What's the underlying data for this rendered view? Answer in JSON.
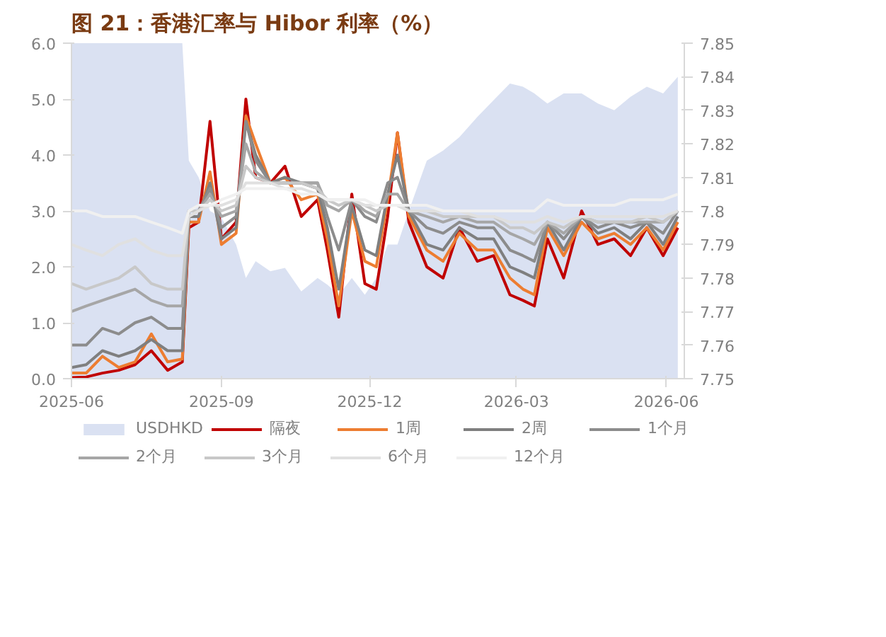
{
  "chart_data": {
    "type": "line",
    "title": "图 21：香港汇率与 Hibor 利率（%）",
    "x": [
      "2025-06-01",
      "2025-06-10",
      "2025-06-20",
      "2025-06-30",
      "2025-07-10",
      "2025-07-20",
      "2025-07-30",
      "2025-08-08",
      "2025-08-12",
      "2025-08-18",
      "2025-08-25",
      "2025-09-01",
      "2025-09-10",
      "2025-09-16",
      "2025-09-22",
      "2025-10-01",
      "2025-10-10",
      "2025-10-20",
      "2025-10-30",
      "2025-11-05",
      "2025-11-12",
      "2025-11-20",
      "2025-11-28",
      "2025-12-05",
      "2025-12-12",
      "2025-12-18",
      "2025-12-25",
      "2026-01-05",
      "2026-01-15",
      "2026-01-25",
      "2026-02-05",
      "2026-02-15",
      "2026-02-25",
      "2026-03-05",
      "2026-03-12",
      "2026-03-20",
      "2026-03-30",
      "2026-04-10",
      "2026-04-20",
      "2026-04-30",
      "2026-05-10",
      "2026-05-20",
      "2026-05-30",
      "2026-06-08"
    ],
    "series": [
      {
        "name": "USDHKD",
        "type": "area",
        "axis": "y2",
        "color": "#dae1f2",
        "values": [
          7.85,
          7.85,
          7.85,
          7.85,
          7.85,
          7.85,
          7.85,
          7.85,
          7.815,
          7.81,
          7.8,
          7.798,
          7.79,
          7.78,
          7.785,
          7.782,
          7.783,
          7.776,
          7.78,
          7.778,
          7.775,
          7.78,
          7.775,
          7.78,
          7.79,
          7.79,
          7.8,
          7.815,
          7.818,
          7.822,
          7.828,
          7.833,
          7.838,
          7.837,
          7.835,
          7.832,
          7.835,
          7.835,
          7.832,
          7.83,
          7.834,
          7.837,
          7.835,
          7.84
        ]
      },
      {
        "name": "隔夜",
        "color": "#c00000",
        "values": [
          0.02,
          0.03,
          0.1,
          0.15,
          0.25,
          0.5,
          0.15,
          0.3,
          2.7,
          2.8,
          4.6,
          2.5,
          2.8,
          5.0,
          3.6,
          3.5,
          3.8,
          2.9,
          3.2,
          2.3,
          1.1,
          3.3,
          1.7,
          1.6,
          2.9,
          4.4,
          2.8,
          2.0,
          1.8,
          2.7,
          2.1,
          2.2,
          1.5,
          1.4,
          1.3,
          2.5,
          1.8,
          3.0,
          2.4,
          2.5,
          2.2,
          2.7,
          2.2,
          2.7
        ]
      },
      {
        "name": "1周",
        "color": "#ed7d31",
        "values": [
          0.1,
          0.1,
          0.4,
          0.2,
          0.3,
          0.8,
          0.3,
          0.35,
          2.8,
          2.8,
          3.7,
          2.4,
          2.6,
          4.7,
          4.2,
          3.5,
          3.6,
          3.2,
          3.3,
          2.5,
          1.3,
          3.0,
          2.1,
          2.0,
          3.2,
          4.4,
          2.9,
          2.3,
          2.1,
          2.6,
          2.3,
          2.3,
          1.8,
          1.6,
          1.5,
          2.7,
          2.2,
          2.8,
          2.5,
          2.6,
          2.4,
          2.7,
          2.3,
          2.8
        ]
      },
      {
        "name": "2周",
        "color": "#7f7f7f",
        "values": [
          0.2,
          0.25,
          0.5,
          0.4,
          0.5,
          0.7,
          0.5,
          0.5,
          2.9,
          2.9,
          3.5,
          2.5,
          2.7,
          4.6,
          4.0,
          3.5,
          3.6,
          3.5,
          3.4,
          2.7,
          1.6,
          3.1,
          2.3,
          2.2,
          3.3,
          4.0,
          3.0,
          2.4,
          2.3,
          2.7,
          2.5,
          2.5,
          2.0,
          1.9,
          1.8,
          2.8,
          2.3,
          2.9,
          2.6,
          2.7,
          2.5,
          2.8,
          2.4,
          2.9
        ]
      },
      {
        "name": "1个月",
        "color": "#8c8c8c",
        "values": [
          0.6,
          0.6,
          0.9,
          0.8,
          1.0,
          1.1,
          0.9,
          0.9,
          3.0,
          3.0,
          3.4,
          2.7,
          2.9,
          4.6,
          3.9,
          3.5,
          3.5,
          3.5,
          3.5,
          2.9,
          2.3,
          3.2,
          2.9,
          2.8,
          3.5,
          3.6,
          3.0,
          2.7,
          2.6,
          2.8,
          2.7,
          2.7,
          2.3,
          2.2,
          2.1,
          2.8,
          2.5,
          2.9,
          2.7,
          2.8,
          2.7,
          2.8,
          2.6,
          3.0
        ]
      },
      {
        "name": "2个月",
        "color": "#a6a6a6",
        "values": [
          1.2,
          1.3,
          1.4,
          1.5,
          1.6,
          1.4,
          1.3,
          1.3,
          3.0,
          3.0,
          3.3,
          2.9,
          3.0,
          4.2,
          3.7,
          3.5,
          3.5,
          3.5,
          3.5,
          3.1,
          3.0,
          3.2,
          3.0,
          2.9,
          3.3,
          3.3,
          3.0,
          2.9,
          2.8,
          2.9,
          2.8,
          2.8,
          2.6,
          2.5,
          2.4,
          2.8,
          2.6,
          2.9,
          2.8,
          2.8,
          2.8,
          2.8,
          2.8,
          3.0
        ]
      },
      {
        "name": "3个月",
        "color": "#c8c8c8",
        "values": [
          1.7,
          1.6,
          1.7,
          1.8,
          2.0,
          1.7,
          1.6,
          1.6,
          3.0,
          3.0,
          3.2,
          3.0,
          3.1,
          3.8,
          3.6,
          3.5,
          3.5,
          3.5,
          3.4,
          3.2,
          3.1,
          3.2,
          3.1,
          3.0,
          3.1,
          3.1,
          3.0,
          3.0,
          2.9,
          2.9,
          2.9,
          2.9,
          2.7,
          2.7,
          2.6,
          2.8,
          2.7,
          2.9,
          2.8,
          2.8,
          2.8,
          2.9,
          2.8,
          3.0
        ]
      },
      {
        "name": "6个月",
        "color": "#e0e0e0",
        "values": [
          2.4,
          2.3,
          2.2,
          2.4,
          2.5,
          2.3,
          2.2,
          2.2,
          2.9,
          3.0,
          3.1,
          3.1,
          3.2,
          3.5,
          3.5,
          3.5,
          3.4,
          3.4,
          3.3,
          3.2,
          3.2,
          3.2,
          3.1,
          3.1,
          3.1,
          3.1,
          3.0,
          3.0,
          3.0,
          3.0,
          2.9,
          2.9,
          2.8,
          2.8,
          2.8,
          2.9,
          2.8,
          2.9,
          2.9,
          2.9,
          2.9,
          2.9,
          2.9,
          3.0
        ]
      },
      {
        "name": "12个月",
        "color": "#f0f0f0",
        "values": [
          3.0,
          3.0,
          2.9,
          2.9,
          2.9,
          2.8,
          2.7,
          2.6,
          3.0,
          3.1,
          3.1,
          3.2,
          3.3,
          3.4,
          3.4,
          3.4,
          3.4,
          3.3,
          3.3,
          3.2,
          3.2,
          3.2,
          3.2,
          3.1,
          3.1,
          3.1,
          3.1,
          3.1,
          3.0,
          3.0,
          3.0,
          3.0,
          3.0,
          3.0,
          3.0,
          3.2,
          3.1,
          3.1,
          3.1,
          3.1,
          3.2,
          3.2,
          3.2,
          3.3
        ]
      }
    ],
    "xlim": [
      "2025-06-01",
      "2026-06-12"
    ],
    "xticks": [
      {
        "value": "2025-06-01",
        "label": "2025-06"
      },
      {
        "value": "2025-09-01",
        "label": "2025-09"
      },
      {
        "value": "2025-12-01",
        "label": "2025-12"
      },
      {
        "value": "2026-03-01",
        "label": "2026-03"
      },
      {
        "value": "2026-06-01",
        "label": "2026-06"
      }
    ],
    "ylim": [
      0,
      6
    ],
    "yticks": [
      {
        "value": 0,
        "label": "0.0"
      },
      {
        "value": 1,
        "label": "1.0"
      },
      {
        "value": 2,
        "label": "2.0"
      },
      {
        "value": 3,
        "label": "3.0"
      },
      {
        "value": 4,
        "label": "4.0"
      },
      {
        "value": 5,
        "label": "5.0"
      },
      {
        "value": 6,
        "label": "6.0"
      }
    ],
    "y2lim": [
      7.75,
      7.85
    ],
    "y2ticks": [
      7.75,
      7.76,
      7.77,
      7.78,
      7.79,
      7.8,
      7.81,
      7.82,
      7.83,
      7.84,
      7.85
    ],
    "legend": "bottom",
    "grid": false,
    "line_style": "solid"
  }
}
